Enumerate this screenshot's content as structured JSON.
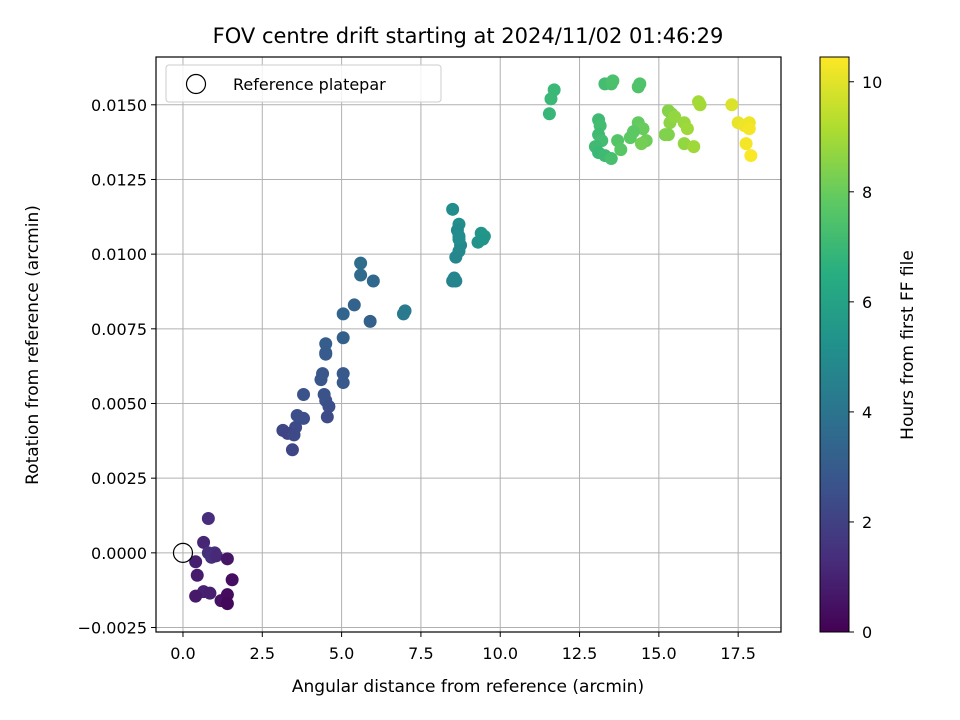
{
  "chart_data": {
    "type": "scatter",
    "title": "FOV centre drift starting at 2024/11/02 01:46:29",
    "xlabel": "Angular distance from reference (arcmin)",
    "ylabel": "Rotation from reference (arcmin)",
    "xlim": [
      -0.85,
      18.85
    ],
    "ylim": [
      -0.00265,
      0.0166
    ],
    "xticks": [
      0.0,
      2.5,
      5.0,
      7.5,
      10.0,
      12.5,
      15.0,
      17.5
    ],
    "xtick_labels": [
      "0.0",
      "2.5",
      "5.0",
      "7.5",
      "10.0",
      "12.5",
      "15.0",
      "17.5"
    ],
    "yticks": [
      -0.0025,
      0.0,
      0.0025,
      0.005,
      0.0075,
      0.01,
      0.0125,
      0.015
    ],
    "ytick_labels": [
      "−0.0025",
      "0.0000",
      "0.0025",
      "0.0050",
      "0.0075",
      "0.0100",
      "0.0125",
      "0.0150"
    ],
    "grid": true,
    "colormap": "viridis",
    "colorbar": {
      "label": "Hours from first FF file",
      "min": 0,
      "max": 10.45,
      "ticks": [
        0,
        2,
        4,
        6,
        8,
        10
      ],
      "tick_labels": [
        "0",
        "2",
        "4",
        "6",
        "8",
        "10"
      ]
    },
    "legend": {
      "position": "top-left",
      "entries": [
        {
          "label": "Reference platepar",
          "marker": "open-circle"
        }
      ]
    },
    "reference_point": {
      "x": 0.0,
      "y": 0.0
    },
    "points": [
      [
        0.8,
        0.00115,
        1.3
      ],
      [
        0.65,
        0.00035,
        1.1
      ],
      [
        0.4,
        -0.0003,
        0.9
      ],
      [
        0.8,
        0.0,
        1.4
      ],
      [
        1.0,
        0.0,
        1.3
      ],
      [
        0.9,
        -0.00015,
        1.5
      ],
      [
        1.05,
        -0.0001,
        1.2
      ],
      [
        1.4,
        -0.0002,
        0.6
      ],
      [
        0.45,
        -0.00075,
        0.8
      ],
      [
        1.55,
        -0.0009,
        0.4
      ],
      [
        0.65,
        -0.0013,
        1.0
      ],
      [
        0.85,
        -0.00135,
        0.9
      ],
      [
        0.4,
        -0.00145,
        0.7
      ],
      [
        1.2,
        -0.0016,
        0.5
      ],
      [
        1.4,
        -0.0014,
        0.3
      ],
      [
        1.4,
        -0.0017,
        0.2
      ],
      [
        5.6,
        0.0097,
        3.7
      ],
      [
        5.6,
        0.0093,
        3.6
      ],
      [
        6.0,
        0.0091,
        3.5
      ],
      [
        5.4,
        0.0083,
        3.3
      ],
      [
        5.05,
        0.008,
        3.4
      ],
      [
        5.9,
        0.00775,
        3.2
      ],
      [
        4.5,
        0.007,
        3.1
      ],
      [
        4.5,
        0.0067,
        3.0
      ],
      [
        5.05,
        0.0072,
        3.2
      ],
      [
        4.5,
        0.00665,
        3.0
      ],
      [
        5.05,
        0.006,
        2.9
      ],
      [
        5.05,
        0.0057,
        2.9
      ],
      [
        4.4,
        0.006,
        2.8
      ],
      [
        4.35,
        0.0058,
        2.8
      ],
      [
        3.8,
        0.0053,
        2.7
      ],
      [
        4.45,
        0.0053,
        2.7
      ],
      [
        4.5,
        0.0051,
        2.6
      ],
      [
        4.6,
        0.0049,
        2.5
      ],
      [
        4.55,
        0.00455,
        2.4
      ],
      [
        3.8,
        0.0045,
        2.5
      ],
      [
        3.6,
        0.0046,
        2.5
      ],
      [
        3.55,
        0.0042,
        2.4
      ],
      [
        3.15,
        0.0041,
        2.2
      ],
      [
        3.3,
        0.004,
        2.1
      ],
      [
        3.5,
        0.00395,
        2.3
      ],
      [
        3.45,
        0.00345,
        2.2
      ],
      [
        7.0,
        0.0081,
        4.3
      ],
      [
        6.95,
        0.008,
        4.2
      ],
      [
        8.5,
        0.0115,
        5.0
      ],
      [
        8.7,
        0.011,
        5.1
      ],
      [
        8.65,
        0.0108,
        4.9
      ],
      [
        8.7,
        0.0106,
        5.0
      ],
      [
        8.75,
        0.0103,
        4.8
      ],
      [
        8.7,
        0.0101,
        4.9
      ],
      [
        8.6,
        0.0099,
        4.8
      ],
      [
        8.6,
        0.0091,
        4.7
      ],
      [
        8.5,
        0.0091,
        4.6
      ],
      [
        8.55,
        0.0092,
        4.7
      ],
      [
        9.4,
        0.0107,
        5.4
      ],
      [
        9.5,
        0.0106,
        5.5
      ],
      [
        9.3,
        0.0104,
        5.3
      ],
      [
        9.45,
        0.0105,
        5.4
      ],
      [
        8.7,
        0.0105,
        5.0
      ],
      [
        11.7,
        0.0155,
        7.0
      ],
      [
        11.6,
        0.0152,
        7.0
      ],
      [
        11.55,
        0.0147,
        6.9
      ],
      [
        13.3,
        0.0157,
        7.2
      ],
      [
        13.5,
        0.0157,
        7.3
      ],
      [
        13.55,
        0.0158,
        7.4
      ],
      [
        14.4,
        0.0157,
        7.5
      ],
      [
        14.35,
        0.0156,
        7.5
      ],
      [
        13.1,
        0.0145,
        7.1
      ],
      [
        13.15,
        0.0143,
        7.2
      ],
      [
        13.1,
        0.014,
        7.1
      ],
      [
        13.2,
        0.0138,
        7.2
      ],
      [
        13.0,
        0.0136,
        7.1
      ],
      [
        13.1,
        0.0134,
        7.0
      ],
      [
        13.3,
        0.0133,
        7.1
      ],
      [
        13.5,
        0.0132,
        7.3
      ],
      [
        13.7,
        0.0138,
        7.6
      ],
      [
        13.8,
        0.0135,
        7.7
      ],
      [
        14.1,
        0.0139,
        7.8
      ],
      [
        14.35,
        0.0144,
        7.9
      ],
      [
        14.5,
        0.0142,
        8.0
      ],
      [
        14.2,
        0.0141,
        7.8
      ],
      [
        14.6,
        0.0138,
        8.1
      ],
      [
        14.45,
        0.0137,
        8.2
      ],
      [
        15.3,
        0.0148,
        8.5
      ],
      [
        15.4,
        0.0147,
        8.5
      ],
      [
        15.35,
        0.0144,
        8.6
      ],
      [
        15.5,
        0.0146,
        8.7
      ],
      [
        15.3,
        0.014,
        8.4
      ],
      [
        15.8,
        0.0144,
        8.8
      ],
      [
        15.9,
        0.0142,
        8.9
      ],
      [
        15.8,
        0.0137,
        8.7
      ],
      [
        16.1,
        0.0136,
        8.9
      ],
      [
        16.25,
        0.0151,
        9.0
      ],
      [
        16.3,
        0.015,
        9.0
      ],
      [
        15.2,
        0.014,
        8.4
      ],
      [
        17.3,
        0.015,
        9.9
      ],
      [
        17.5,
        0.0144,
        10.1
      ],
      [
        17.85,
        0.0144,
        10.2
      ],
      [
        17.7,
        0.0143,
        10.2
      ],
      [
        17.85,
        0.0142,
        10.3
      ],
      [
        17.75,
        0.0137,
        10.3
      ],
      [
        17.9,
        0.0133,
        10.4
      ]
    ]
  }
}
